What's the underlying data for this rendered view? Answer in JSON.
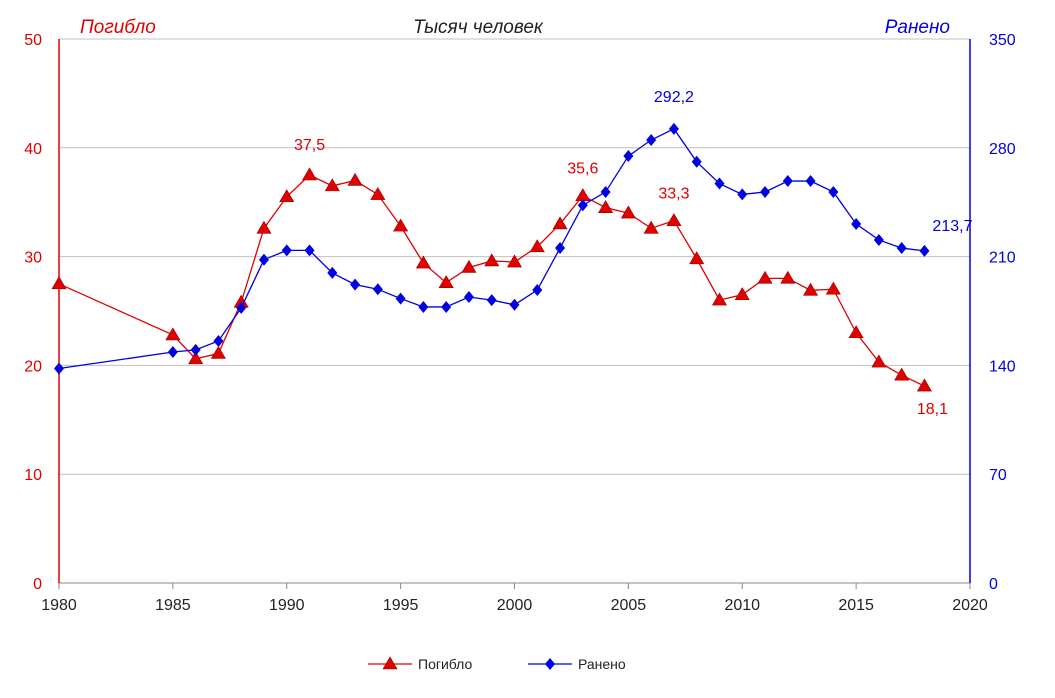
{
  "chart_data": {
    "type": "line",
    "title": "Тысяч человек",
    "left_axis_label": "Погибло",
    "right_axis_label": "Ранено",
    "xlim": [
      1980,
      2020
    ],
    "x_ticks": [
      1980,
      1985,
      1990,
      1995,
      2000,
      2005,
      2010,
      2015,
      2020
    ],
    "ylim_left": [
      0,
      50
    ],
    "y_ticks_left": [
      0,
      10,
      20,
      30,
      40,
      50
    ],
    "ylim_right": [
      0,
      350
    ],
    "y_ticks_right": [
      0,
      70,
      140,
      210,
      280,
      350
    ],
    "grid": true,
    "legend_position": "bottom",
    "x": [
      1980,
      1985,
      1986,
      1987,
      1988,
      1989,
      1990,
      1991,
      1992,
      1993,
      1994,
      1995,
      1996,
      1997,
      1998,
      1999,
      2000,
      2001,
      2002,
      2003,
      2004,
      2005,
      2006,
      2007,
      2008,
      2009,
      2010,
      2011,
      2012,
      2013,
      2014,
      2015,
      2016,
      2017,
      2018
    ],
    "series": [
      {
        "name": "Погибло",
        "axis": "left",
        "color": "#e00000",
        "marker": "triangle",
        "values": [
          27.5,
          22.8,
          20.6,
          21.1,
          25.8,
          32.6,
          35.5,
          37.5,
          36.5,
          37.0,
          35.7,
          32.8,
          29.4,
          27.6,
          29.0,
          29.6,
          29.5,
          30.9,
          33.0,
          35.6,
          34.5,
          34.0,
          32.6,
          33.3,
          29.8,
          26.0,
          26.5,
          28.0,
          28.0,
          26.9,
          27.0,
          23.0,
          20.3,
          19.1,
          18.1
        ],
        "data_labels": [
          {
            "x": 1991,
            "text": "37,5"
          },
          {
            "x": 2003,
            "text": "35,6"
          },
          {
            "x": 2007,
            "text": "33,3"
          },
          {
            "x": 2018,
            "text": "18,1"
          }
        ]
      },
      {
        "name": "Ранено",
        "axis": "right",
        "color": "#0000e0",
        "marker": "diamond",
        "values": [
          138,
          148.6,
          150,
          155.7,
          177,
          208,
          214,
          214,
          199.5,
          192,
          189,
          183,
          177.6,
          177.6,
          184,
          182,
          179,
          188.5,
          215.5,
          243,
          251.6,
          274.7,
          285,
          292.2,
          271,
          257,
          250,
          251.6,
          258.6,
          258.6,
          251.6,
          231,
          220.7,
          215.5,
          213.7
        ],
        "data_labels": [
          {
            "x": 2007,
            "text": "292,2"
          },
          {
            "x": 2018,
            "text": "213,7"
          }
        ]
      }
    ]
  }
}
